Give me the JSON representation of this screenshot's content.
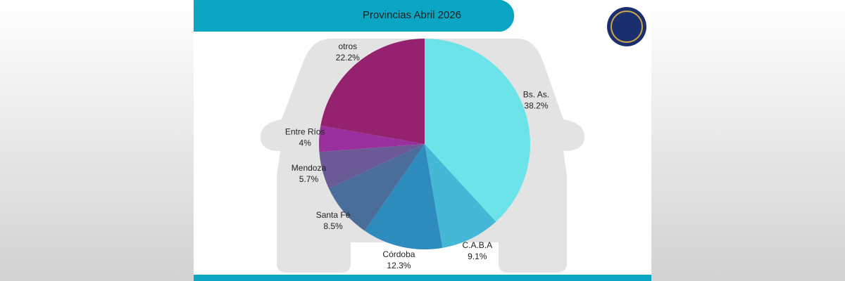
{
  "chart_data": {
    "type": "pie",
    "title": "Provincias Abril 2026",
    "categories": [
      "Bs. As.",
      "C.A.B.A",
      "Córdoba",
      "Santa Fé",
      "Mendoza",
      "Entre Ríos",
      "otros"
    ],
    "values": [
      38.2,
      9.1,
      12.3,
      8.5,
      5.7,
      4,
      22.2
    ],
    "value_labels": [
      "38.2%",
      "9.1%",
      "12.3%",
      "8.5%",
      "5.7%",
      "4%",
      "22.2%"
    ],
    "colors": [
      "#6ce3e8",
      "#45b8d6",
      "#2e8bbd",
      "#4a6d9a",
      "#6a5a96",
      "#9a2f9e",
      "#95226e"
    ]
  }
}
